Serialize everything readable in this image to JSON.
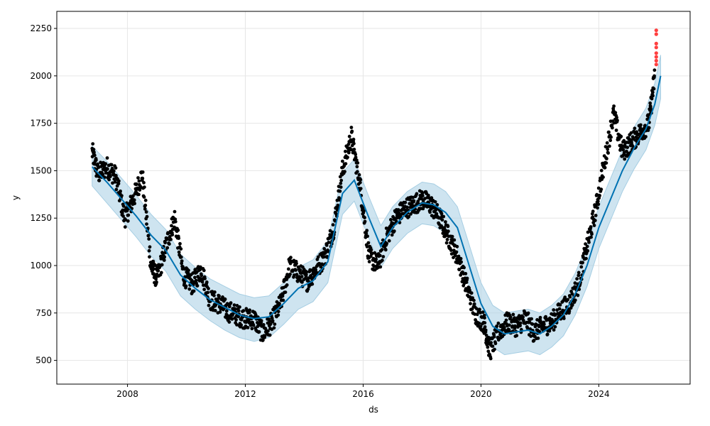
{
  "chart_data": {
    "type": "scatter",
    "title": "",
    "xlabel": "ds",
    "ylabel": "y",
    "xlim": [
      2005.6,
      2027.1
    ],
    "ylim": [
      375,
      2340
    ],
    "grid": true,
    "xticks": [
      2008,
      2012,
      2016,
      2020,
      2024
    ],
    "xtick_labels": [
      "2008",
      "2012",
      "2016",
      "2020",
      "2024"
    ],
    "yticks": [
      500,
      750,
      1000,
      1250,
      1500,
      1750,
      2000,
      2250
    ],
    "ytick_labels": [
      "500",
      "750",
      "1000",
      "1250",
      "1500",
      "1750",
      "2000",
      "2250"
    ],
    "colors": {
      "observed": "#000000",
      "forecast": "#0072B2",
      "interval": "#a6cee3",
      "outlier": "#ff0000",
      "grid": "#e6e6e6"
    },
    "forecast": {
      "x": [
        2006.8,
        2007.3,
        2007.8,
        2008.3,
        2008.8,
        2009.3,
        2009.8,
        2010.3,
        2010.8,
        2011.3,
        2011.8,
        2012.3,
        2012.8,
        2013.3,
        2013.8,
        2014.3,
        2014.8,
        2015.3,
        2015.7,
        2016.2,
        2016.6,
        2017.0,
        2017.5,
        2018.0,
        2018.4,
        2018.8,
        2019.2,
        2019.6,
        2020.0,
        2020.4,
        2020.8,
        2021.2,
        2021.6,
        2022.0,
        2022.4,
        2022.8,
        2023.2,
        2023.6,
        2024.0,
        2024.4,
        2024.8,
        2025.2,
        2025.6,
        2025.9,
        2026.1
      ],
      "yhat": [
        1520,
        1440,
        1350,
        1260,
        1160,
        1080,
        950,
        880,
        820,
        780,
        740,
        720,
        730,
        800,
        880,
        920,
        1020,
        1380,
        1450,
        1250,
        1100,
        1200,
        1280,
        1330,
        1320,
        1280,
        1200,
        1000,
        800,
        680,
        640,
        650,
        660,
        640,
        680,
        740,
        850,
        1000,
        1200,
        1350,
        1500,
        1620,
        1720,
        1850,
        2000
      ],
      "yhat_lower": [
        1420,
        1330,
        1240,
        1150,
        1050,
        970,
        840,
        770,
        710,
        660,
        620,
        600,
        620,
        690,
        770,
        810,
        910,
        1270,
        1340,
        1140,
        990,
        1090,
        1170,
        1220,
        1210,
        1170,
        1090,
        890,
        690,
        570,
        530,
        540,
        550,
        530,
        570,
        630,
        740,
        890,
        1090,
        1240,
        1390,
        1510,
        1610,
        1740,
        1880
      ],
      "yhat_upper": [
        1630,
        1550,
        1460,
        1370,
        1270,
        1190,
        1060,
        990,
        930,
        890,
        850,
        830,
        840,
        910,
        990,
        1030,
        1130,
        1490,
        1560,
        1360,
        1210,
        1310,
        1390,
        1440,
        1430,
        1390,
        1310,
        1110,
        910,
        790,
        750,
        760,
        770,
        750,
        790,
        850,
        960,
        1110,
        1310,
        1460,
        1610,
        1730,
        1830,
        1960,
        2110
      ]
    },
    "observed_trace": {
      "x": [
        2006.8,
        2007.0,
        2007.3,
        2007.6,
        2007.9,
        2008.2,
        2008.5,
        2008.8,
        2009.0,
        2009.3,
        2009.6,
        2009.9,
        2010.2,
        2010.5,
        2010.8,
        2011.1,
        2011.4,
        2011.7,
        2012.0,
        2012.3,
        2012.6,
        2012.9,
        2013.2,
        2013.5,
        2013.8,
        2014.1,
        2014.4,
        2014.7,
        2015.0,
        2015.3,
        2015.6,
        2015.9,
        2016.2,
        2016.5,
        2016.8,
        2017.1,
        2017.4,
        2017.7,
        2018.0,
        2018.3,
        2018.6,
        2018.9,
        2019.2,
        2019.5,
        2019.8,
        2020.1,
        2020.3,
        2020.6,
        2020.9,
        2021.2,
        2021.5,
        2021.8,
        2022.1,
        2022.4,
        2022.7,
        2023.0,
        2023.3,
        2023.6,
        2023.9,
        2024.2,
        2024.5,
        2024.8,
        2025.1,
        2025.4,
        2025.7,
        2025.9
      ],
      "y": [
        1600,
        1480,
        1520,
        1470,
        1250,
        1350,
        1480,
        1000,
        930,
        1100,
        1250,
        950,
        900,
        980,
        820,
        800,
        760,
        740,
        720,
        720,
        640,
        700,
        800,
        1000,
        960,
        920,
        980,
        1050,
        1200,
        1500,
        1680,
        1420,
        1050,
        1000,
        1150,
        1250,
        1300,
        1320,
        1350,
        1320,
        1250,
        1150,
        1050,
        900,
        750,
        700,
        550,
        650,
        700,
        680,
        720,
        650,
        680,
        700,
        760,
        800,
        900,
        1100,
        1300,
        1550,
        1800,
        1600,
        1650,
        1700,
        1750,
        2000
      ]
    },
    "outliers": {
      "x": [
        2025.95,
        2025.95,
        2025.95,
        2025.95,
        2025.95,
        2025.95,
        2025.95,
        2025.95
      ],
      "y": [
        2240,
        2220,
        2170,
        2120,
        2100,
        2080,
        2060,
        2150
      ]
    }
  }
}
